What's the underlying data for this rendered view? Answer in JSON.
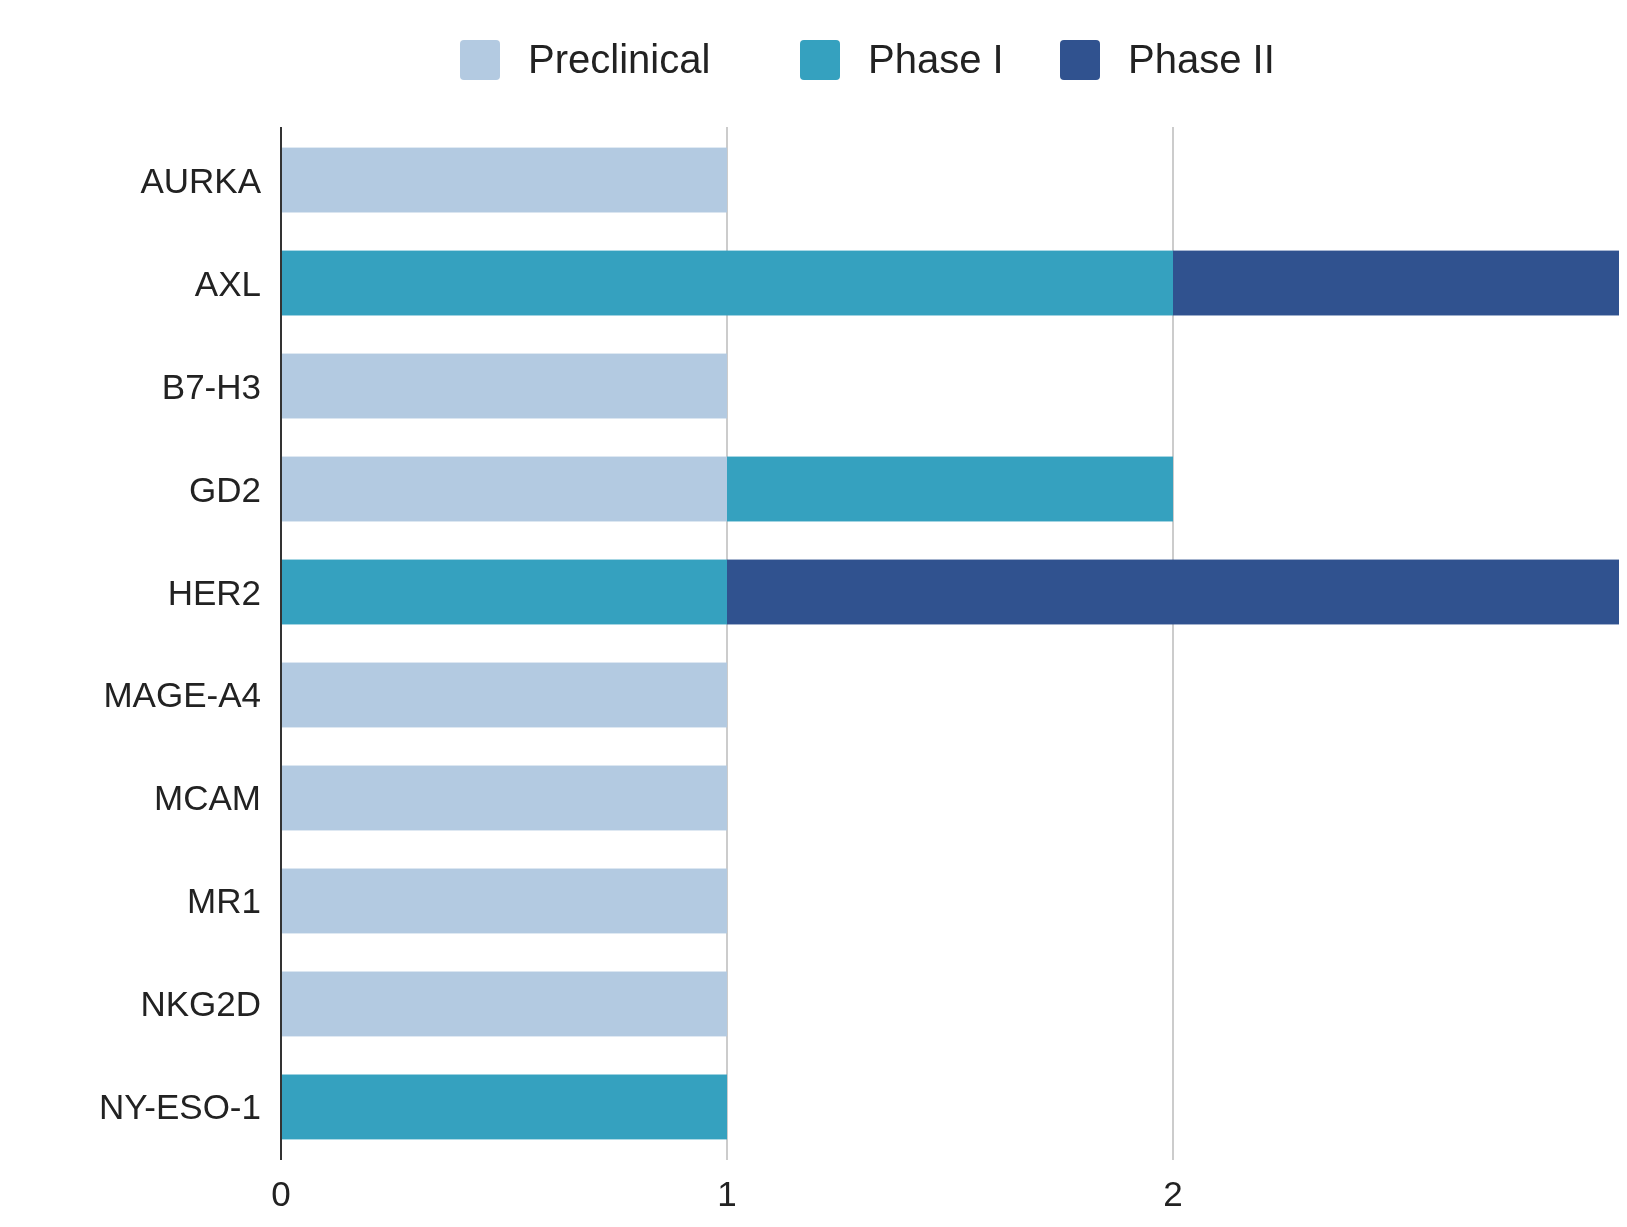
{
  "chart_data": {
    "type": "bar",
    "orientation": "horizontal",
    "stacked": true,
    "categories": [
      "AURKA",
      "AXL",
      "B7-H3",
      "GD2",
      "HER2",
      "MAGE-A4",
      "MCAM",
      "MR1",
      "NKG2D",
      "NY-ESO-1"
    ],
    "series": [
      {
        "name": "Preclinical",
        "color": "#b3cae1",
        "values": [
          1,
          null,
          1,
          1,
          null,
          1,
          1,
          1,
          1,
          null
        ]
      },
      {
        "name": "Phase I",
        "color": "#35a1bf",
        "values": [
          null,
          2,
          null,
          1,
          1,
          null,
          null,
          null,
          null,
          1
        ]
      },
      {
        "name": "Phase II",
        "color": "#30528f",
        "values": [
          null,
          1,
          null,
          null,
          2,
          null,
          null,
          null,
          null,
          null
        ]
      }
    ],
    "xlim": [
      0,
      3
    ],
    "xticks": [
      0,
      1,
      2
    ],
    "grid": "x",
    "legend": "top"
  }
}
